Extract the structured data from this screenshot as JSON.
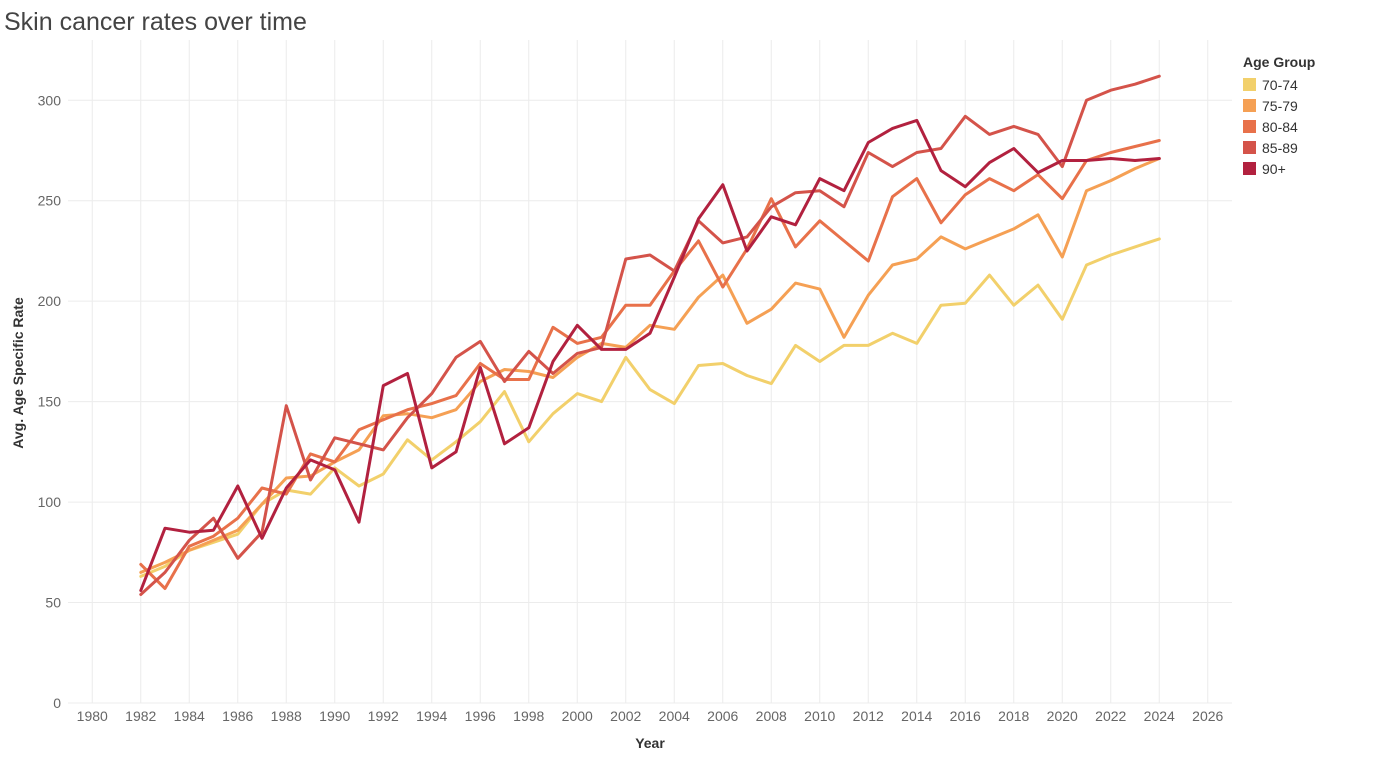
{
  "chart_data": {
    "type": "line",
    "title": "Skin cancer rates over time",
    "xlabel": "Year",
    "ylabel": "Avg. Age Specific Rate",
    "xlim": [
      1979,
      2027
    ],
    "ylim": [
      0,
      330
    ],
    "x_ticks": [
      1980,
      1982,
      1984,
      1986,
      1988,
      1990,
      1992,
      1994,
      1996,
      1998,
      2000,
      2002,
      2004,
      2006,
      2008,
      2010,
      2012,
      2014,
      2016,
      2018,
      2020,
      2022,
      2024,
      2026
    ],
    "y_ticks": [
      0,
      50,
      100,
      150,
      200,
      250,
      300
    ],
    "grid": true,
    "legend_title": "Age Group",
    "legend_position": "top-right",
    "x": [
      1982,
      1983,
      1984,
      1985,
      1986,
      1987,
      1988,
      1989,
      1990,
      1991,
      1992,
      1993,
      1994,
      1995,
      1996,
      1997,
      1998,
      1999,
      2000,
      2001,
      2002,
      2003,
      2004,
      2005,
      2006,
      2007,
      2008,
      2009,
      2010,
      2011,
      2012,
      2013,
      2014,
      2015,
      2016,
      2017,
      2018,
      2019,
      2020,
      2021,
      2022,
      2023,
      2024
    ],
    "series": [
      {
        "name": "70-74",
        "color": "#f2d06b",
        "values": [
          63,
          68,
          76,
          80,
          84,
          99,
          106,
          104,
          117,
          108,
          114,
          131,
          121,
          130,
          140,
          155,
          130,
          144,
          154,
          150,
          172,
          156,
          149,
          168,
          169,
          163,
          159,
          178,
          170,
          178,
          178,
          184,
          179,
          198,
          199,
          213,
          198,
          208,
          191,
          218,
          223,
          227,
          231
        ]
      },
      {
        "name": "75-79",
        "color": "#f5a054",
        "values": [
          65,
          70,
          76,
          81,
          86,
          99,
          112,
          113,
          120,
          126,
          143,
          144,
          142,
          146,
          160,
          166,
          165,
          162,
          172,
          179,
          177,
          188,
          186,
          202,
          213,
          189,
          196,
          209,
          206,
          182,
          203,
          218,
          221,
          232,
          226,
          231,
          236,
          243,
          222,
          255,
          260,
          266,
          271
        ]
      },
      {
        "name": "80-84",
        "color": "#e8714a",
        "values": [
          69,
          57,
          78,
          83,
          92,
          107,
          104,
          124,
          120,
          136,
          141,
          146,
          149,
          153,
          169,
          161,
          161,
          187,
          179,
          182,
          198,
          198,
          215,
          230,
          207,
          226,
          251,
          227,
          240,
          230,
          220,
          252,
          261,
          239,
          253,
          261,
          255,
          263,
          251,
          270,
          274,
          277,
          280
        ]
      },
      {
        "name": "85-89",
        "color": "#d4534a",
        "values": [
          54,
          65,
          81,
          92,
          72,
          85,
          148,
          111,
          132,
          129,
          126,
          142,
          154,
          172,
          180,
          160,
          175,
          164,
          174,
          177,
          221,
          223,
          215,
          240,
          229,
          232,
          247,
          254,
          255,
          247,
          274,
          267,
          274,
          276,
          292,
          283,
          287,
          283,
          267,
          300,
          305,
          308,
          312
        ]
      },
      {
        "name": "90+",
        "color": "#b2213f",
        "values": [
          56,
          87,
          85,
          86,
          108,
          82,
          107,
          121,
          116,
          90,
          158,
          164,
          117,
          125,
          167,
          129,
          137,
          170,
          188,
          176,
          176,
          184,
          212,
          241,
          258,
          225,
          242,
          238,
          261,
          255,
          279,
          286,
          290,
          265,
          257,
          269,
          276,
          264,
          270,
          270,
          271,
          270,
          271
        ]
      }
    ]
  }
}
